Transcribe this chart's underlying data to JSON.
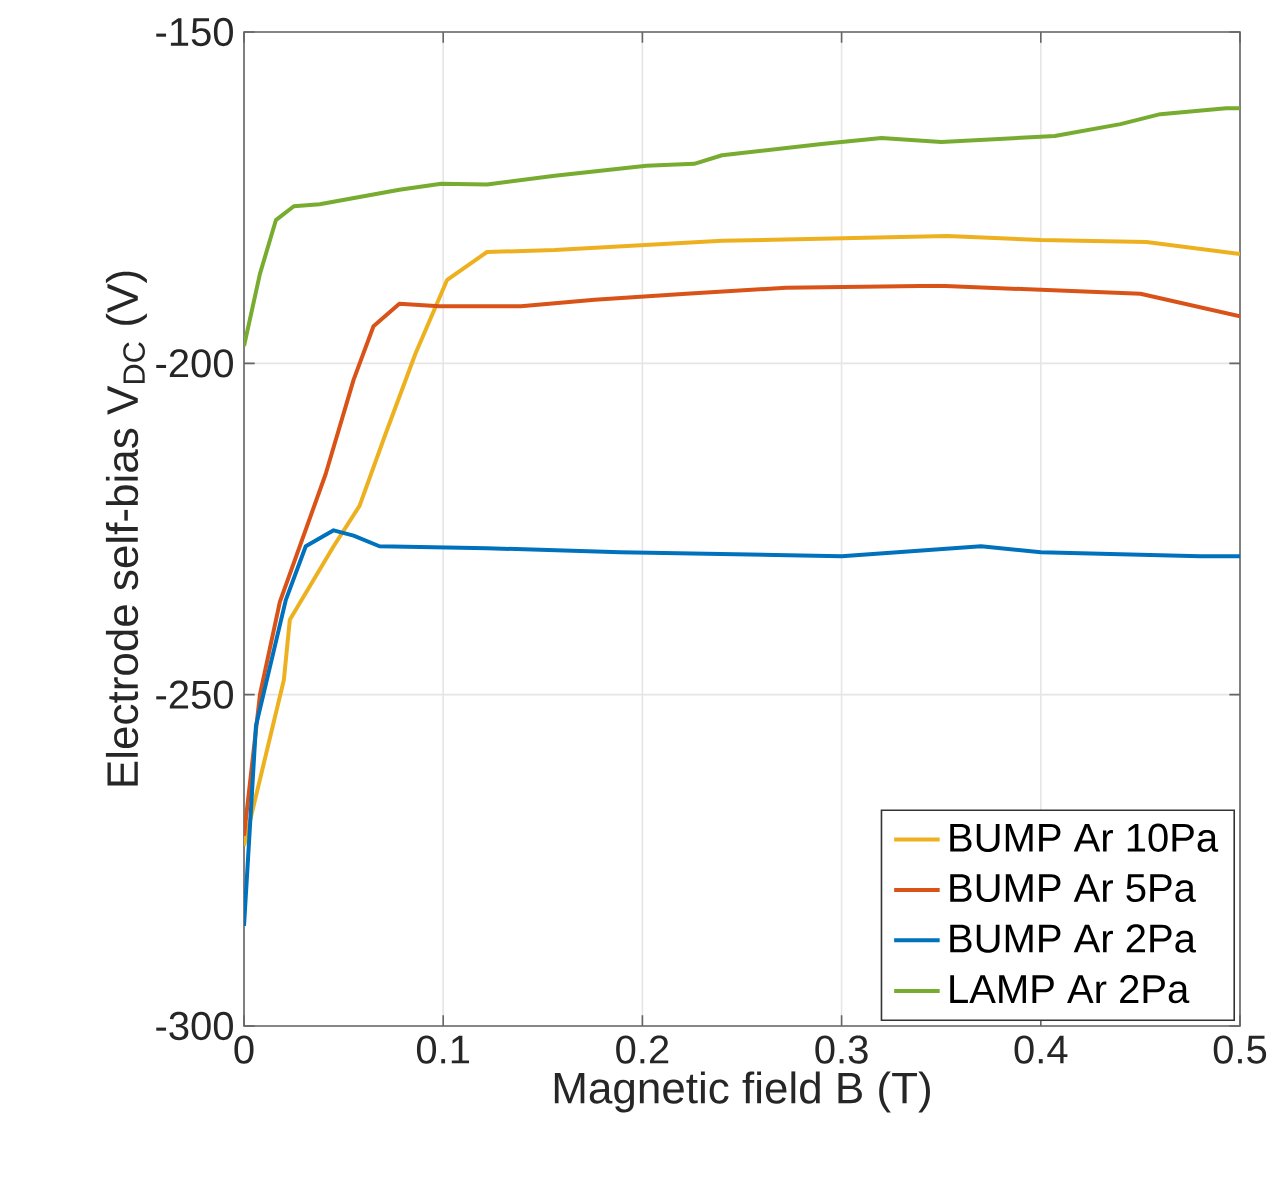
{
  "chart_data": {
    "type": "line",
    "xlabel": "Magnetic field B (T)",
    "ylabel": "Electrode self-bias V$_{DC}$ (V)",
    "xlim": [
      0,
      0.5
    ],
    "ylim": [
      -300,
      -150
    ],
    "xticks": [
      0,
      0.1,
      0.2,
      0.3,
      0.4,
      0.5
    ],
    "yticks": [
      -300,
      -250,
      -200,
      -150
    ],
    "grid": true,
    "legend": "bottom right",
    "marker": "none",
    "line_style": "solid",
    "series": [
      {
        "name": "BUMP Ar 10Pa",
        "color": "#edb120",
        "x": [
          0,
          0.02,
          0.023,
          0.045,
          0.058,
          0.071,
          0.086,
          0.102,
          0.122,
          0.156,
          0.24,
          0.353,
          0.4,
          0.453,
          0.5
        ],
        "values": [
          -272.8,
          -247.8,
          -238.7,
          -227.6,
          -221.5,
          -210.7,
          -198.6,
          -187.4,
          -183.2,
          -182.9,
          -181.5,
          -180.8,
          -181.4,
          -181.7,
          -183.5
        ]
      },
      {
        "name": "BUMP Ar 5Pa",
        "color": "#d95319",
        "x": [
          0,
          0.008,
          0.018,
          0.041,
          0.055,
          0.065,
          0.078,
          0.098,
          0.139,
          0.176,
          0.222,
          0.272,
          0.349,
          0.4,
          0.45,
          0.5
        ],
        "values": [
          -271.3,
          -250,
          -236,
          -216.7,
          -202.5,
          -194.4,
          -191,
          -191.4,
          -191.4,
          -190.4,
          -189.5,
          -188.6,
          -188.3,
          -188.9,
          -189.5,
          -192.9
        ]
      },
      {
        "name": "BUMP Ar 2Pa",
        "color": "#0072bd",
        "x": [
          0,
          0.006,
          0.021,
          0.031,
          0.045,
          0.055,
          0.068,
          0.122,
          0.189,
          0.3,
          0.37,
          0.4,
          0.48,
          0.5
        ],
        "values": [
          -284.9,
          -254.7,
          -235.7,
          -227.6,
          -225.2,
          -226,
          -227.6,
          -227.9,
          -228.5,
          -229.1,
          -227.6,
          -228.5,
          -229.1,
          -229.1
        ]
      },
      {
        "name": "LAMP Ar 2Pa",
        "color": "#77ac30",
        "x": [
          0,
          0.008,
          0.016,
          0.025,
          0.038,
          0.078,
          0.099,
          0.122,
          0.156,
          0.202,
          0.226,
          0.24,
          0.29,
          0.32,
          0.35,
          0.407,
          0.44,
          0.46,
          0.493,
          0.5
        ],
        "values": [
          -197.4,
          -186.5,
          -178.4,
          -176.3,
          -176,
          -173.8,
          -172.9,
          -173,
          -171.7,
          -170.2,
          -169.9,
          -168.6,
          -166.9,
          -166,
          -166.6,
          -165.7,
          -163.9,
          -162.4,
          -161.5,
          -161.5
        ]
      }
    ]
  }
}
